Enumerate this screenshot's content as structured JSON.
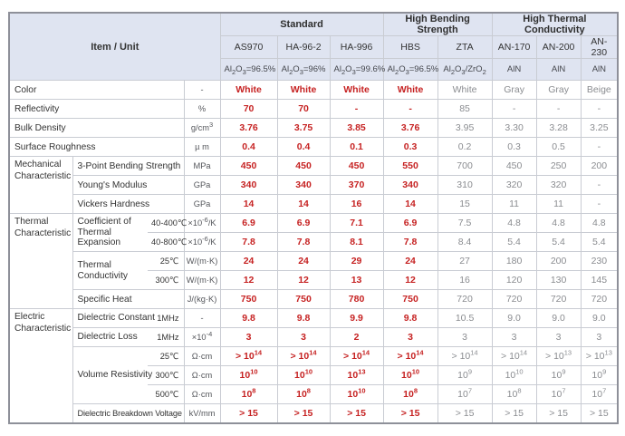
{
  "colors": {
    "accent_red": "#c62222",
    "muted_value_text": "#8a8c90",
    "header_background": "#dfe4f1",
    "grid_line": "#c9ccd3",
    "outer_border": "#8e9099"
  },
  "table": {
    "header": {
      "item_unit": "Item / Unit",
      "groups": [
        {
          "label": "Standard",
          "cols": 3
        },
        {
          "label": "High Bending Strength",
          "cols": 2
        },
        {
          "label": "High Thermal Conductivity",
          "cols": 3
        }
      ],
      "columns": [
        "AS970",
        "HA-96-2",
        "HA-996",
        "HBS",
        "ZTA",
        "AN-170",
        "AN-200",
        "AN-230"
      ],
      "compositions": [
        "Al~2~O~3~=96.5%",
        "Al~2~O~3~=96%",
        "Al~2~O~3~=99.6%",
        "Al~2~O~3~=96.5%",
        "Al~2~O~3~/ZrO~2~",
        "AlN",
        "AlN",
        "AlN"
      ]
    },
    "red_value_columns": [
      0,
      1,
      2,
      3
    ],
    "rows": [
      {
        "item3": "Color",
        "unit": "-",
        "values": [
          "White",
          "White",
          "White",
          "White",
          "White",
          "Gray",
          "Gray",
          "Beige"
        ]
      },
      {
        "item3": "Reflectivity",
        "unit": "%",
        "values": [
          "70",
          "70",
          "-",
          "-",
          "85",
          "-",
          "-",
          "-"
        ]
      },
      {
        "item3": "Bulk Density",
        "unit": "g/cm^3^",
        "values": [
          "3.76",
          "3.75",
          "3.85",
          "3.76",
          "3.95",
          "3.30",
          "3.28",
          "3.25"
        ]
      },
      {
        "item3": "Surface Roughness",
        "unit": "µ m",
        "values": [
          "0.4",
          "0.4",
          "0.1",
          "0.3",
          "0.2",
          "0.3",
          "0.5",
          "-"
        ]
      },
      {
        "category": {
          "label": "Mechanical\nCharacteristic",
          "rows": 3
        },
        "item2": "3-Point Bending Strength",
        "unit": "MPa",
        "values": [
          "450",
          "450",
          "450",
          "550",
          "700",
          "450",
          "250",
          "200"
        ]
      },
      {
        "item2": "Young's Modulus",
        "unit": "GPa",
        "values": [
          "340",
          "340",
          "370",
          "340",
          "310",
          "320",
          "320",
          "-"
        ]
      },
      {
        "item2": "Vickers Hardness",
        "unit": "GPa",
        "values": [
          "14",
          "14",
          "16",
          "14",
          "15",
          "11",
          "11",
          "-"
        ]
      },
      {
        "category": {
          "label": "Thermal\nCharacteristic",
          "rows": 5
        },
        "name": {
          "label": "Coefficient of\nThermal\nExpansion",
          "rows": 2
        },
        "sub": "40-400℃",
        "unit": "×10^-6^/K",
        "values": [
          "6.9",
          "6.9",
          "7.1",
          "6.9",
          "7.5",
          "4.8",
          "4.8",
          "4.8"
        ]
      },
      {
        "sub": "40-800℃",
        "unit": "×10^-6^/K",
        "values": [
          "7.8",
          "7.8",
          "8.1",
          "7.8",
          "8.4",
          "5.4",
          "5.4",
          "5.4"
        ]
      },
      {
        "name": {
          "label": "Thermal\nConductivity",
          "rows": 2
        },
        "sub": "25℃",
        "unit": "W/(m·K)",
        "values": [
          "24",
          "24",
          "29",
          "24",
          "27",
          "180",
          "200",
          "230"
        ]
      },
      {
        "sub": "300℃",
        "unit": "W/(m·K)",
        "values": [
          "12",
          "12",
          "13",
          "12",
          "16",
          "120",
          "130",
          "145"
        ]
      },
      {
        "item2": "Specific Heat",
        "unit": "J/(kg·K)",
        "values": [
          "750",
          "750",
          "780",
          "750",
          "720",
          "720",
          "720",
          "720"
        ]
      },
      {
        "category": {
          "label": "Electric\nCharacteristic",
          "rows": 6
        },
        "name": {
          "label": "Dielectric Constant",
          "rows": 1
        },
        "sub": "1MHz",
        "unit": "-",
        "values": [
          "9.8",
          "9.8",
          "9.9",
          "9.8",
          "10.5",
          "9.0",
          "9.0",
          "9.0"
        ]
      },
      {
        "name": {
          "label": "Dielectric Loss",
          "rows": 1
        },
        "sub": "1MHz",
        "unit": "×10^-4^",
        "values": [
          "3",
          "3",
          "2",
          "3",
          "3",
          "3",
          "3",
          "3"
        ]
      },
      {
        "name": {
          "label": "Volume Resistivity",
          "rows": 3
        },
        "sub": "25℃",
        "unit": "Ω·cm",
        "values": [
          "> 10^14^",
          "> 10^14^",
          "> 10^14^",
          "> 10^14^",
          "> 10^14^",
          "> 10^14^",
          "> 10^13^",
          "> 10^13^"
        ]
      },
      {
        "sub": "300℃",
        "unit": "Ω·cm",
        "values": [
          "10^10^",
          "10^10^",
          "10^13^",
          "10^10^",
          "10^9^",
          "10^10^",
          "10^9^",
          "10^9^"
        ]
      },
      {
        "sub": "500℃",
        "unit": "Ω·cm",
        "values": [
          "10^8^",
          "10^8^",
          "10^10^",
          "10^8^",
          "10^7^",
          "10^8^",
          "10^7^",
          "10^7^"
        ]
      },
      {
        "item2": "Dielectric Breakdown Voltage",
        "unit": "kV/mm",
        "values": [
          "> 15",
          "> 15",
          "> 15",
          "> 15",
          "> 15",
          "> 15",
          "> 15",
          "> 15"
        ]
      }
    ]
  }
}
